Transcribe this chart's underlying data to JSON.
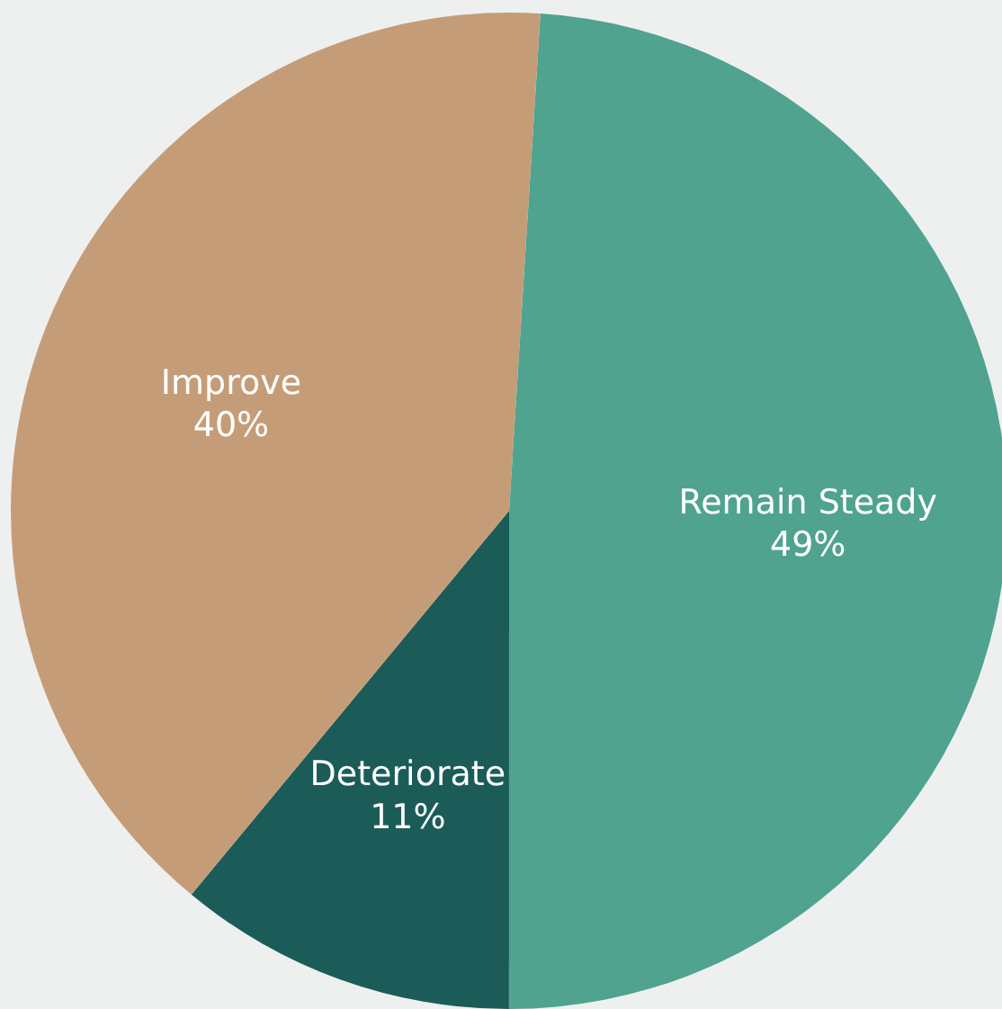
{
  "chart_data": {
    "type": "pie",
    "categories": [
      "Remain Steady",
      "Deteriorate",
      "Improve"
    ],
    "values": [
      49,
      11,
      40
    ],
    "colors": [
      "#4fa38f",
      "#1b5c58",
      "#c49d78"
    ],
    "value_labels": [
      "49%",
      "11%",
      "40%"
    ],
    "legend": false
  }
}
